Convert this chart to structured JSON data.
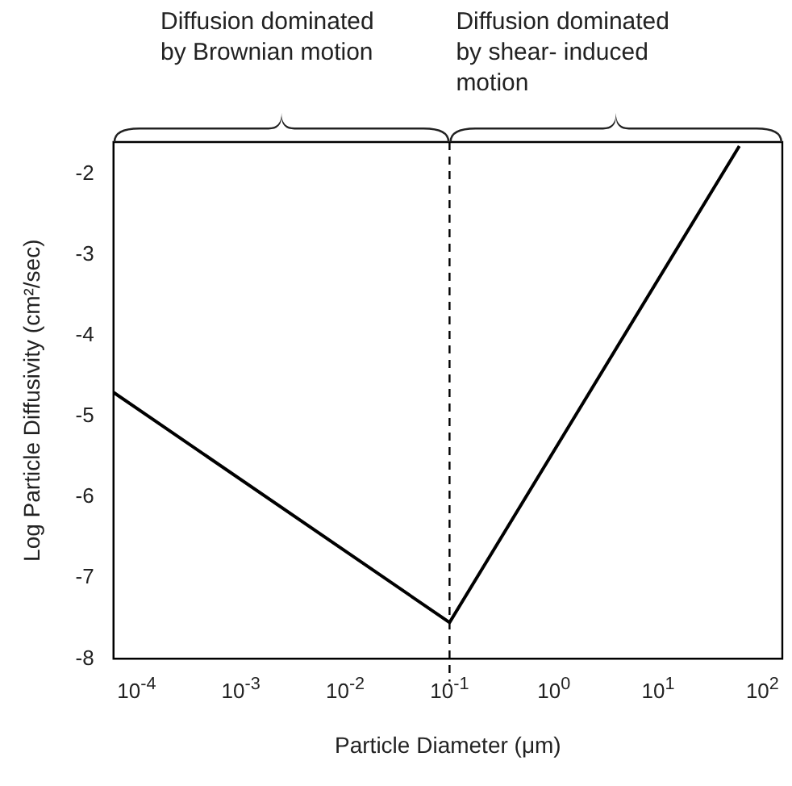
{
  "chart_data": {
    "type": "line",
    "xlabel": "Particle Diameter (μm)",
    "ylabel": "Log Particle Diffusivity (cm²/sec)",
    "x": [
      6e-05,
      0.1,
      60
    ],
    "values": [
      -4.7,
      -7.55,
      -1.65
    ],
    "color": "#000000",
    "log": "x",
    "xlim": [
      6e-05,
      155
    ],
    "xticks": [
      {
        "value": 0.0001,
        "label": "10$^{-4}$"
      },
      {
        "value": 0.001,
        "label": "10$^{-3}$"
      },
      {
        "value": 0.01,
        "label": "10$^{-2}$"
      },
      {
        "value": 0.1,
        "label": "10$^{-1}$"
      },
      {
        "value": 1,
        "label": "10$^{0}$"
      },
      {
        "value": 10,
        "label": "10$^{1}$"
      },
      {
        "value": 100,
        "label": "10$^{2}$"
      }
    ],
    "ylim": [
      -8,
      -1.6
    ],
    "yticks": [
      -8,
      -7,
      -6,
      -5,
      -4,
      -3,
      -2
    ],
    "grid": false,
    "legend": false,
    "marker": "none",
    "line_style": "solid",
    "ref_lines": [
      {
        "axis": "x",
        "value": 0.1,
        "line_style": "dashed",
        "color": "#000000"
      }
    ],
    "annotations": [
      "Diffusion dominated by Brownian motion",
      "Diffusion dominated by shear- induced motion"
    ]
  }
}
